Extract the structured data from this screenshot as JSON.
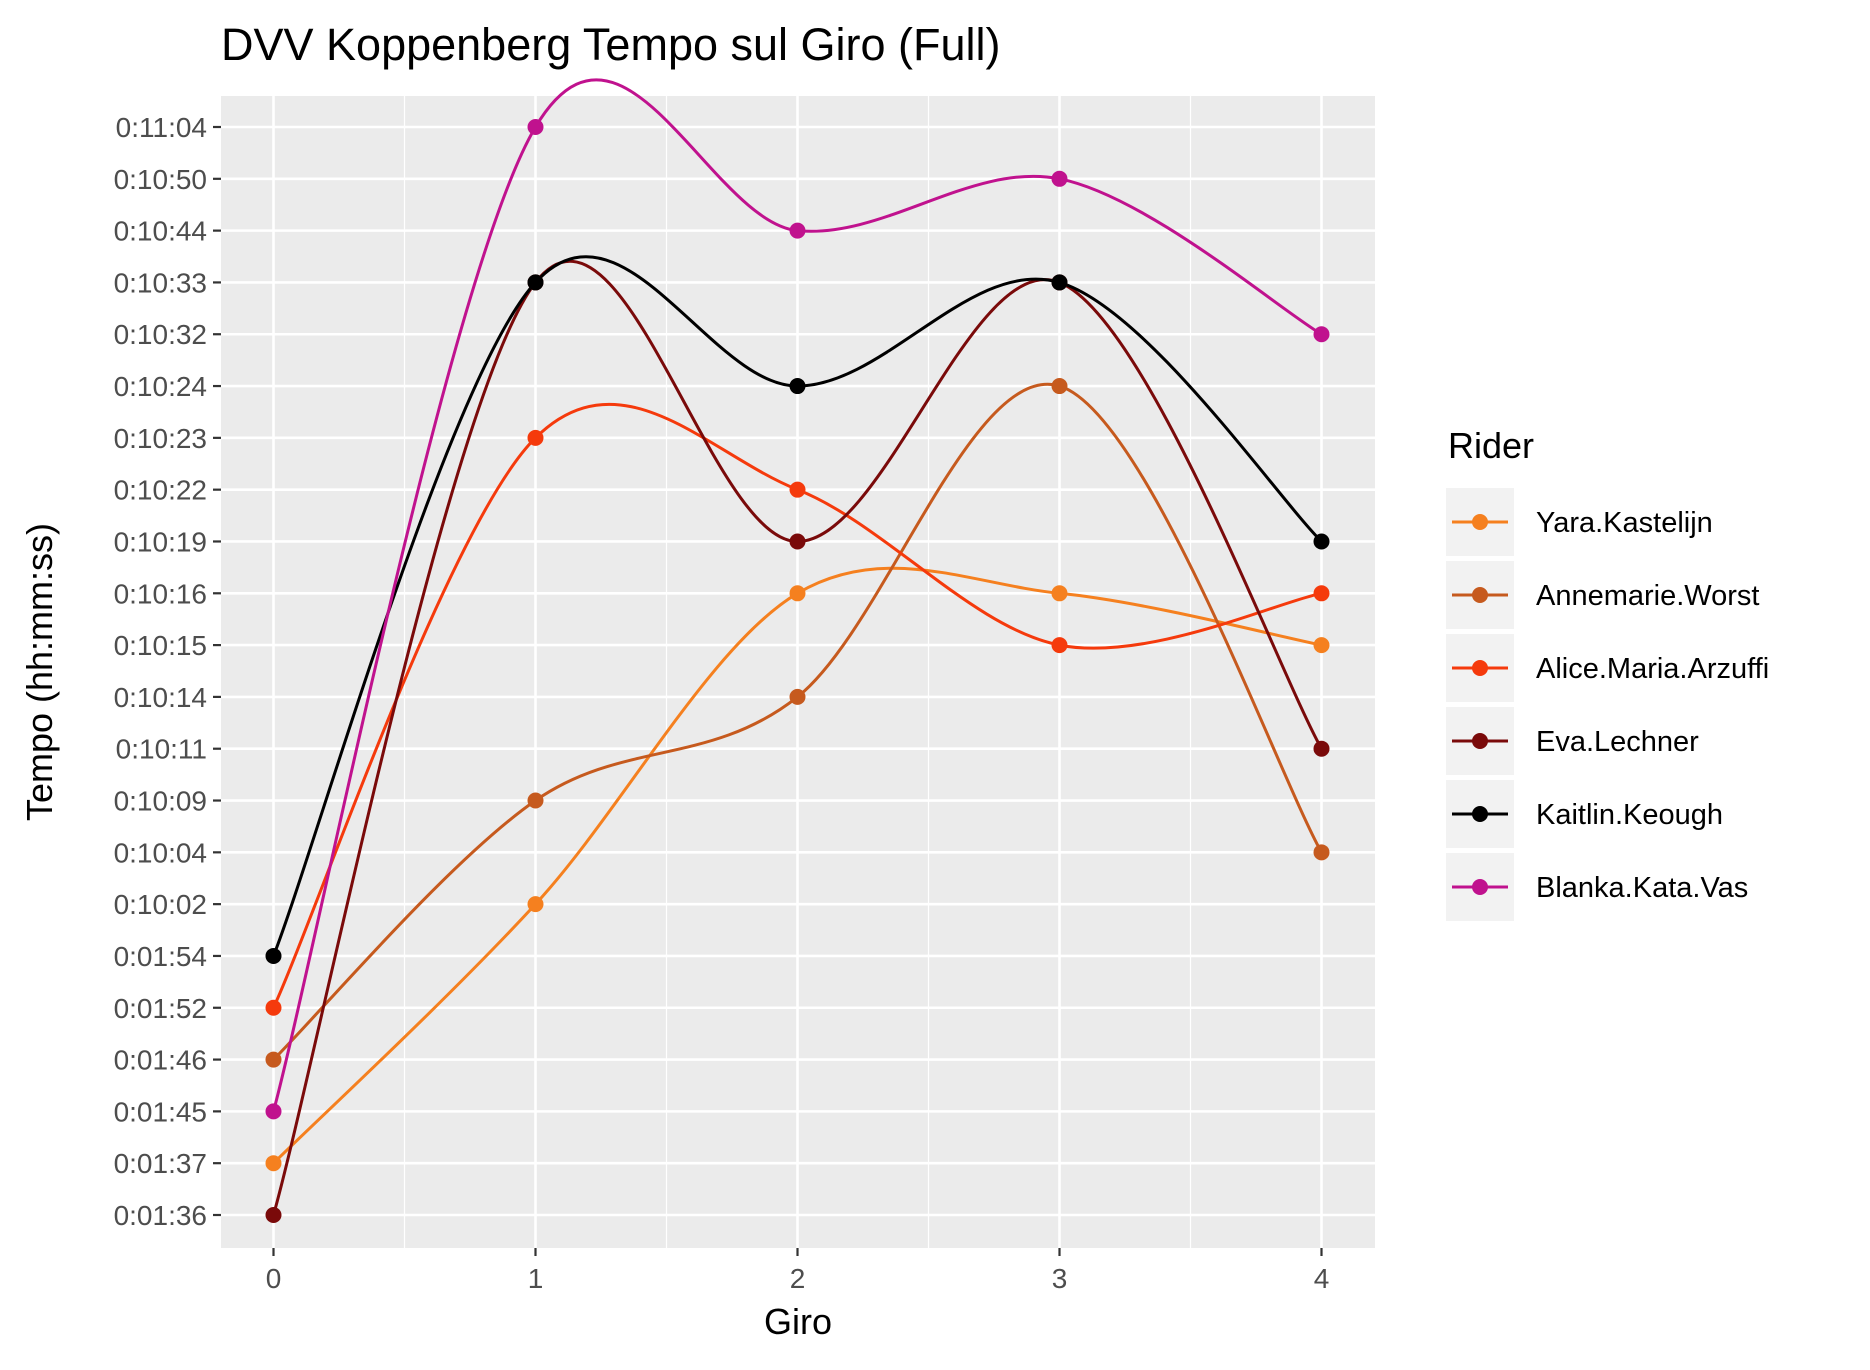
{
  "chart_data": {
    "type": "line",
    "title": "DVV Koppenberg Tempo sul Giro (Full)",
    "xlabel": "Giro",
    "ylabel": "Tempo (hh:mm:ss)",
    "x": [
      0,
      1,
      2,
      3,
      4
    ],
    "x_ticks": [
      "0",
      "1",
      "2",
      "3",
      "4"
    ],
    "y_categories": [
      "0:01:36",
      "0:01:37",
      "0:01:45",
      "0:01:46",
      "0:01:52",
      "0:01:54",
      "0:10:02",
      "0:10:04",
      "0:10:09",
      "0:10:11",
      "0:10:14",
      "0:10:15",
      "0:10:16",
      "0:10:19",
      "0:10:22",
      "0:10:23",
      "0:10:24",
      "0:10:32",
      "0:10:33",
      "0:10:44",
      "0:10:50",
      "0:11:04"
    ],
    "y_scale": "discrete",
    "grid": true,
    "legend": {
      "title": "Rider",
      "placement": "right"
    },
    "series": [
      {
        "name": "Yara.Kastelijn",
        "color": "#F5801F",
        "values": [
          "0:01:37",
          "0:10:02",
          "0:10:16",
          "0:10:16",
          "0:10:15"
        ]
      },
      {
        "name": "Annemarie.Worst",
        "color": "#C65A1E",
        "values": [
          "0:01:46",
          "0:10:09",
          "0:10:14",
          "0:10:24",
          "0:10:04"
        ]
      },
      {
        "name": "Alice.Maria.Arzuffi",
        "color": "#F53A0C",
        "values": [
          "0:01:52",
          "0:10:23",
          "0:10:22",
          "0:10:15",
          "0:10:16"
        ]
      },
      {
        "name": "Eva.Lechner",
        "color": "#7A0A0A",
        "values": [
          "0:01:36",
          "0:10:33",
          "0:10:19",
          "0:10:33",
          "0:10:11"
        ]
      },
      {
        "name": "Kaitlin.Keough",
        "color": "#000000",
        "values": [
          "0:01:54",
          "0:10:33",
          "0:10:24",
          "0:10:33",
          "0:10:19"
        ]
      },
      {
        "name": "Blanka.Kata.Vas",
        "color": "#C0128E",
        "values": [
          "0:01:45",
          "0:11:04",
          "0:10:44",
          "0:10:50",
          "0:10:32"
        ]
      }
    ]
  }
}
